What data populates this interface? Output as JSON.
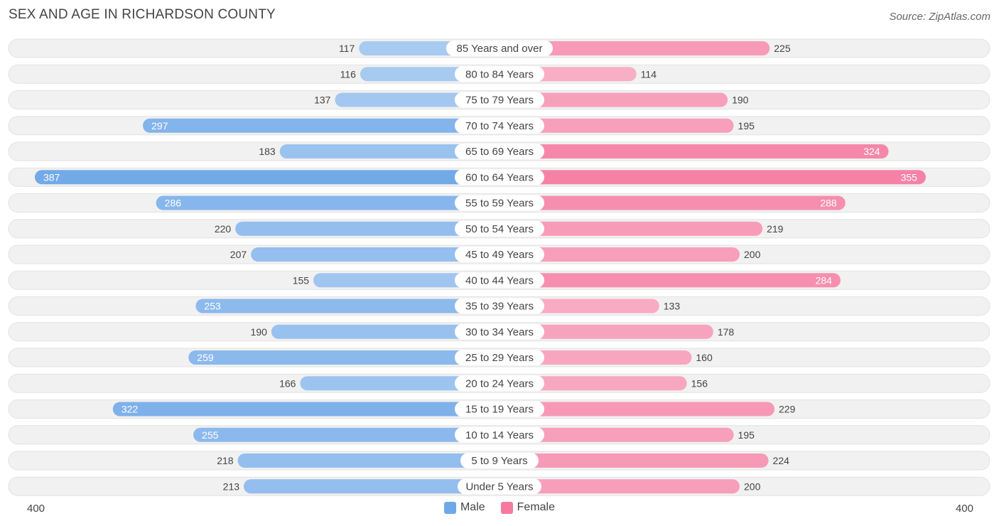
{
  "title": "SEX AND AGE IN RICHARDSON COUNTY",
  "source": "Source: ZipAtlas.com",
  "axis": {
    "left_label": "400",
    "right_label": "400"
  },
  "legend": [
    {
      "label": "Male",
      "color": "#6fa8e8"
    },
    {
      "label": "Female",
      "color": "#f47aa0"
    }
  ],
  "chart_data": {
    "type": "bar",
    "orientation": "horizontal-diverging",
    "title": "SEX AND AGE IN RICHARDSON COUNTY",
    "xlim": [
      -400,
      400
    ],
    "categories": [
      "85 Years and over",
      "80 to 84 Years",
      "75 to 79 Years",
      "70 to 74 Years",
      "65 to 69 Years",
      "60 to 64 Years",
      "55 to 59 Years",
      "50 to 54 Years",
      "45 to 49 Years",
      "40 to 44 Years",
      "35 to 39 Years",
      "30 to 34 Years",
      "25 to 29 Years",
      "20 to 24 Years",
      "15 to 19 Years",
      "10 to 14 Years",
      "5 to 9 Years",
      "Under 5 Years"
    ],
    "series": [
      {
        "name": "Male",
        "color": "#6fa8e8",
        "values": [
          117,
          116,
          137,
          297,
          183,
          387,
          286,
          220,
          207,
          155,
          253,
          190,
          259,
          166,
          322,
          255,
          218,
          213
        ]
      },
      {
        "name": "Female",
        "color": "#f47aa0",
        "values": [
          225,
          114,
          190,
          195,
          324,
          355,
          288,
          219,
          200,
          284,
          133,
          178,
          160,
          156,
          229,
          195,
          224,
          200
        ]
      }
    ]
  }
}
